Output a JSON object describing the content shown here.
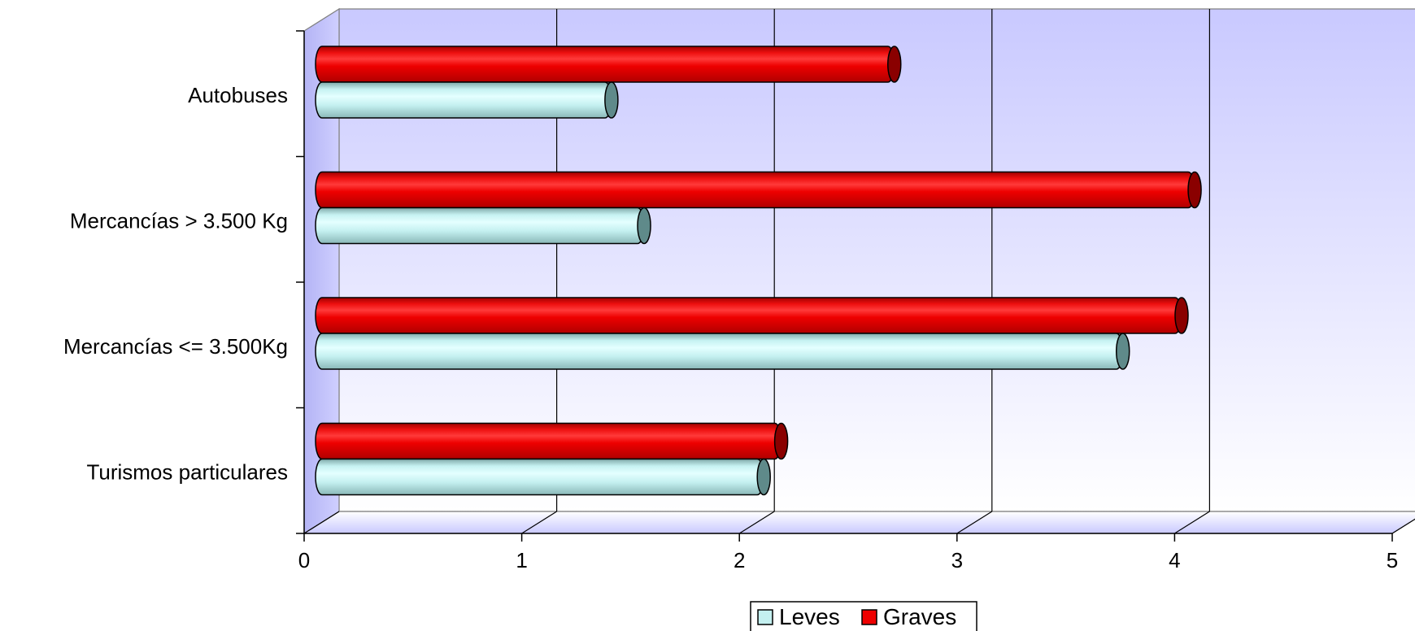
{
  "chart_data": {
    "type": "bar",
    "orientation": "horizontal",
    "style": "3d-cylinder",
    "categories": [
      "Autobuses",
      "Mercancías > 3.500 Kg",
      "Mercancías <= 3.500Kg",
      "Turismos particulares"
    ],
    "series": [
      {
        "name": "Leves",
        "values": [
          1.3,
          1.45,
          3.65,
          2.0
        ],
        "color": "#c4f0f0",
        "end_color": "#5f8a8a"
      },
      {
        "name": "Graves",
        "values": [
          2.6,
          3.98,
          3.92,
          2.08
        ],
        "color": "#ee0000",
        "end_color": "#8a0000"
      }
    ],
    "xlim": [
      0,
      5
    ],
    "xticks": [
      "0",
      "1",
      "2",
      "3",
      "4",
      "5"
    ],
    "title": "",
    "xlabel": "",
    "ylabel": "",
    "grid": true,
    "legend": "bottom",
    "colors": {
      "wall": "#c8c8ff",
      "floor": "#d4d4ff",
      "grid": "#000000"
    }
  }
}
